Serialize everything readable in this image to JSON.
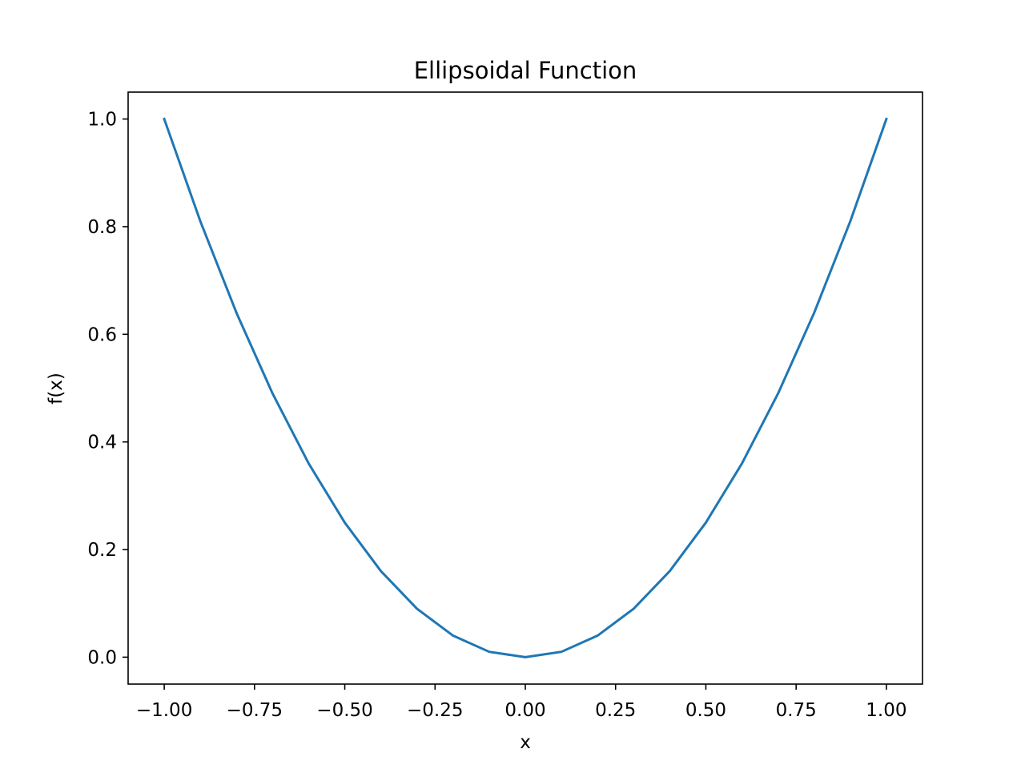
{
  "chart_data": {
    "type": "line",
    "title": "Ellipsoidal Function",
    "xlabel": "x",
    "ylabel": "f(x)",
    "xlim": [
      -1.1,
      1.1
    ],
    "ylim": [
      -0.05,
      1.05
    ],
    "xticks": [
      -1.0,
      -0.75,
      -0.5,
      -0.25,
      0.0,
      0.25,
      0.5,
      0.75,
      1.0
    ],
    "xtick_labels": [
      "−1.00",
      "−0.75",
      "−0.50",
      "−0.25",
      "0.00",
      "0.25",
      "0.50",
      "0.75",
      "1.00"
    ],
    "yticks": [
      0.0,
      0.2,
      0.4,
      0.6,
      0.8,
      1.0
    ],
    "ytick_labels": [
      "0.0",
      "0.2",
      "0.4",
      "0.6",
      "0.8",
      "1.0"
    ],
    "grid": false,
    "series": [
      {
        "color": "#1f77b4",
        "x": [
          -1.0,
          -0.9,
          -0.8,
          -0.7,
          -0.6,
          -0.5,
          -0.4,
          -0.3,
          -0.2,
          -0.1,
          0.0,
          0.1,
          0.2,
          0.3,
          0.4,
          0.5,
          0.6,
          0.7,
          0.8,
          0.9,
          1.0
        ],
        "y": [
          1.0,
          0.81,
          0.64,
          0.49,
          0.36,
          0.25,
          0.16,
          0.09,
          0.04,
          0.01,
          0.0,
          0.01,
          0.04,
          0.09,
          0.16,
          0.25,
          0.36,
          0.49,
          0.64,
          0.81,
          1.0
        ]
      }
    ]
  }
}
